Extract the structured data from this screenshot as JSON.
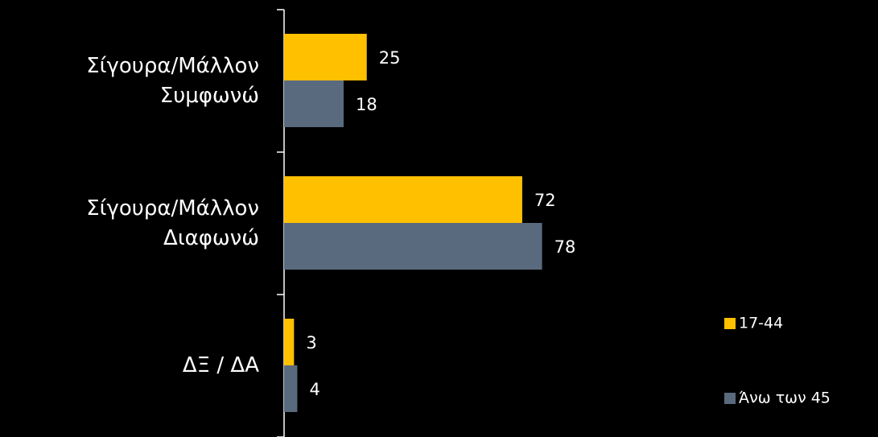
{
  "chart_data": {
    "type": "hbar",
    "categories": [
      "Σίγουρα/Μάλλον\nΣυμφωνώ",
      "Σίγουρα/Μάλλον\nΔιαφωνώ",
      "ΔΞ / ΔΑ"
    ],
    "series": [
      {
        "name": "17-44",
        "color": "#ffc000",
        "values": [
          25,
          72,
          3
        ]
      },
      {
        "name": "Άνω των 45",
        "color": "#5a6a7e",
        "values": [
          18,
          78,
          4
        ]
      }
    ],
    "xlim": [
      0,
      100
    ],
    "legend": "right"
  }
}
